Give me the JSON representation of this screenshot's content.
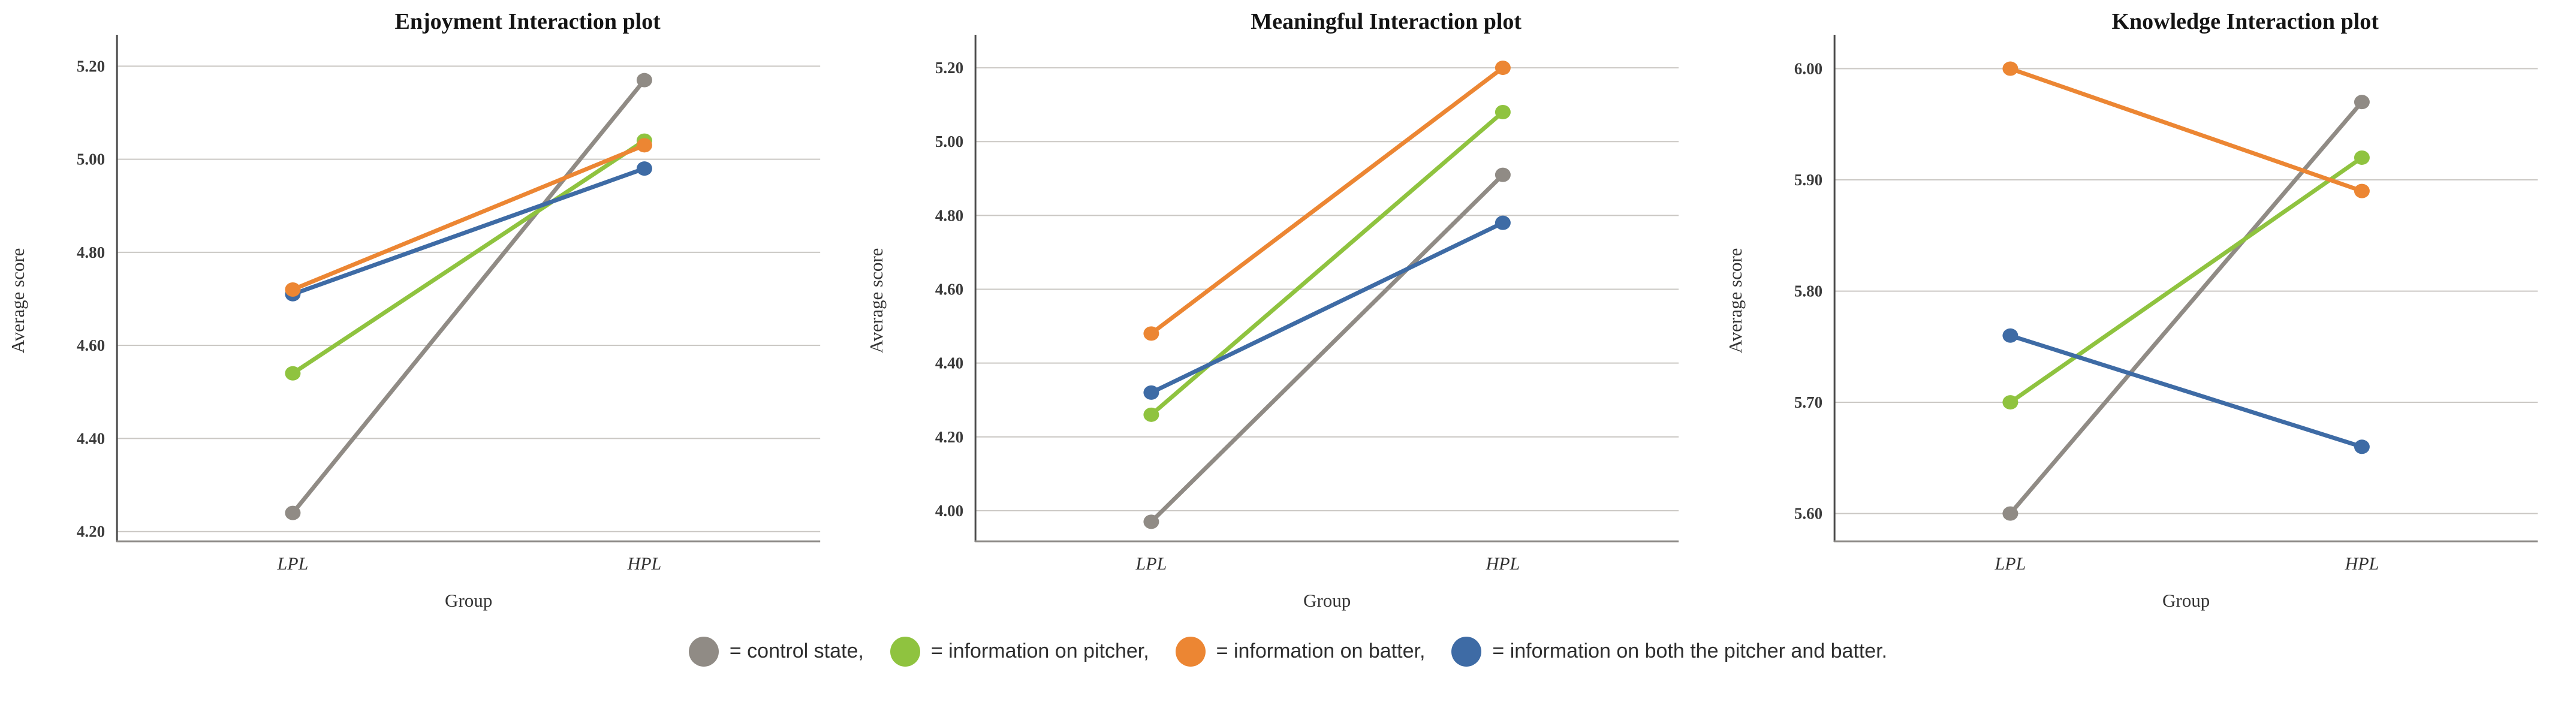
{
  "legend": {
    "position": "bottom-center",
    "items": [
      {
        "name": "control-state",
        "color": "#908B85",
        "label": "= control state,"
      },
      {
        "name": "information-on-pitcher",
        "color": "#8FC33F",
        "label": "= information on pitcher,"
      },
      {
        "name": "information-on-batter",
        "color": "#EC8633",
        "label": "= information on batter,"
      },
      {
        "name": "information-on-both",
        "color": "#3E6BA5",
        "label": "= information on both the pitcher and batter."
      }
    ]
  },
  "chart_data": [
    {
      "type": "line",
      "title": "Enjoyment Interaction plot",
      "xlabel": "Group",
      "ylabel": "Average score",
      "categories": [
        "LPL",
        "HPL"
      ],
      "yticks": [
        4.2,
        4.4,
        4.6,
        4.8,
        5.0,
        5.2
      ],
      "ytick_labels": [
        "4.20",
        "4.40",
        "4.60",
        "4.80",
        "5.00",
        "5.20"
      ],
      "ylim": [
        4.179,
        5.252
      ],
      "grid": true,
      "legend_position": "shared-bottom",
      "series": [
        {
          "name": "control state",
          "slug": "control-state",
          "color": "#908B85",
          "values": [
            4.24,
            5.17
          ]
        },
        {
          "name": "information on pitcher",
          "slug": "information-on-pitcher",
          "color": "#8FC33F",
          "values": [
            4.54,
            5.04
          ]
        },
        {
          "name": "information on both the pitcher and batter",
          "slug": "information-on-both",
          "color": "#3E6BA5",
          "values": [
            4.71,
            4.98
          ]
        },
        {
          "name": "information on batter",
          "slug": "information-on-batter",
          "color": "#EC8633",
          "values": [
            4.72,
            5.03
          ]
        }
      ]
    },
    {
      "type": "line",
      "title": "Meaningful Interaction plot",
      "xlabel": "Group",
      "ylabel": "Average score",
      "categories": [
        "LPL",
        "HPL"
      ],
      "yticks": [
        4.0,
        4.2,
        4.4,
        4.6,
        4.8,
        5.0,
        5.2
      ],
      "ytick_labels": [
        "4.00",
        "4.20",
        "4.40",
        "4.60",
        "4.80",
        "5.00",
        "5.20"
      ],
      "ylim": [
        3.917,
        5.27
      ],
      "grid": true,
      "legend_position": "shared-bottom",
      "series": [
        {
          "name": "control state",
          "slug": "control-state",
          "color": "#908B85",
          "values": [
            3.97,
            4.91
          ]
        },
        {
          "name": "information on pitcher",
          "slug": "information-on-pitcher",
          "color": "#8FC33F",
          "values": [
            4.26,
            5.08
          ]
        },
        {
          "name": "information on both the pitcher and batter",
          "slug": "information-on-both",
          "color": "#3E6BA5",
          "values": [
            4.32,
            4.78
          ]
        },
        {
          "name": "information on batter",
          "slug": "information-on-batter",
          "color": "#EC8633",
          "values": [
            4.48,
            5.2
          ]
        }
      ]
    },
    {
      "type": "line",
      "title": "Knowledge Interaction plot",
      "xlabel": "Group",
      "ylabel": "Average score",
      "categories": [
        "LPL",
        "HPL"
      ],
      "yticks": [
        5.6,
        5.7,
        5.8,
        5.9,
        6.0
      ],
      "ytick_labels": [
        "5.60",
        "5.70",
        "5.80",
        "5.90",
        "6.00"
      ],
      "ylim": [
        5.575,
        6.024
      ],
      "grid": true,
      "legend_position": "shared-bottom",
      "series": [
        {
          "name": "control state",
          "slug": "control-state",
          "color": "#908B85",
          "values": [
            5.6,
            5.97
          ]
        },
        {
          "name": "information on pitcher",
          "slug": "information-on-pitcher",
          "color": "#8FC33F",
          "values": [
            5.7,
            5.92
          ]
        },
        {
          "name": "information on both the pitcher and batter",
          "slug": "information-on-both",
          "color": "#3E6BA5",
          "values": [
            5.76,
            5.66
          ]
        },
        {
          "name": "information on batter",
          "slug": "information-on-batter",
          "color": "#EC8633",
          "values": [
            6.0,
            5.89
          ]
        }
      ]
    }
  ],
  "style": {
    "gridline_color": "#CAC7C3",
    "y_axis_color": "#4B4B4B",
    "x_axis_color": "#8F8C89",
    "background": "#FFFFFF"
  }
}
